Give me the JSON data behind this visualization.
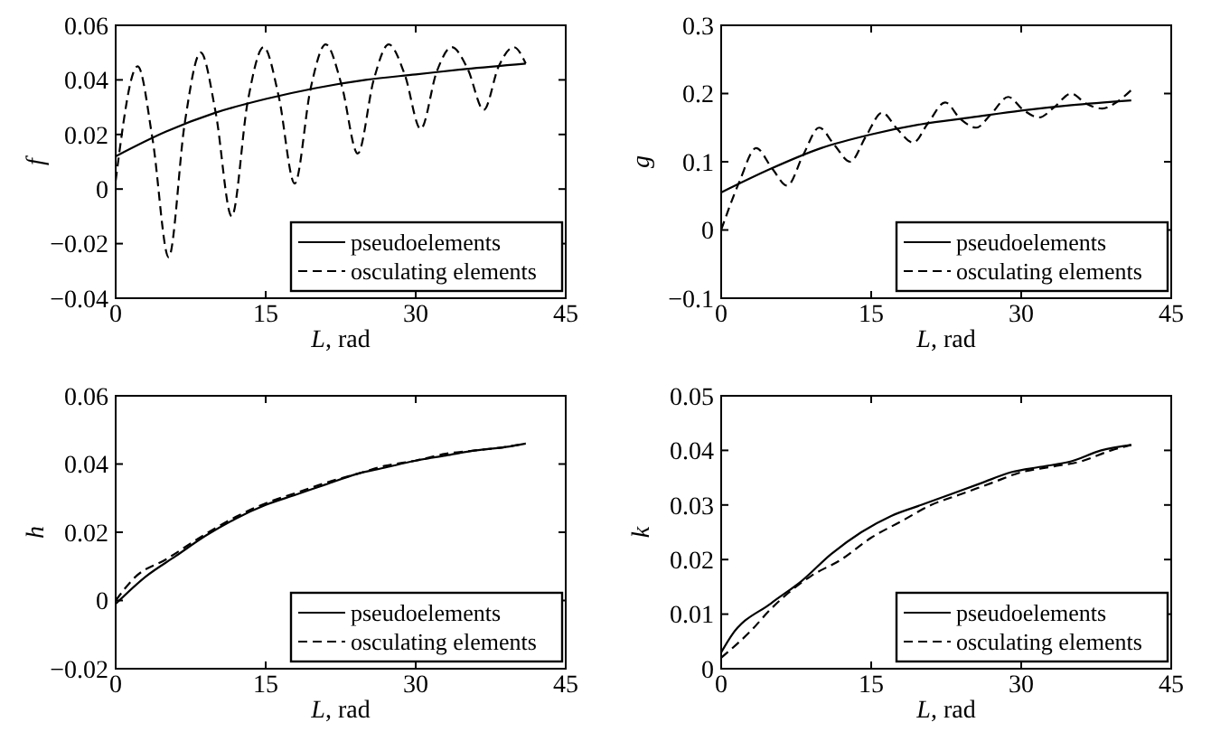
{
  "chart_data": [
    {
      "type": "line",
      "xlabel": "L, rad",
      "ylabel": "f",
      "xlim": [
        0,
        45
      ],
      "xticks": [
        0,
        15,
        30,
        45
      ],
      "ylim": [
        -0.04,
        0.06
      ],
      "yticks": [
        {
          "value": -0.04,
          "label": "−0.04"
        },
        {
          "value": -0.02,
          "label": "−0.02"
        },
        0,
        0.02,
        0.04,
        0.06
      ],
      "legend": "bottom right",
      "series": [
        {
          "name": "pseudoelements",
          "color": "#000000",
          "line_style": "solid",
          "x": [
            0,
            5,
            10,
            15,
            20,
            25,
            30,
            35,
            41
          ],
          "values": [
            0.012,
            0.021,
            0.028,
            0.033,
            0.037,
            0.04,
            0.042,
            0.044,
            0.046
          ]
        },
        {
          "name": "osculating elements",
          "color": "#000000",
          "line_style": "dashed",
          "x": [
            0,
            2.2,
            3.7,
            5.3,
            6.9,
            8.5,
            10,
            11.6,
            13.2,
            14.8,
            16.3,
            17.9,
            19.5,
            21,
            22.6,
            24.2,
            25.8,
            27.3,
            28.9,
            30.5,
            32.1,
            33.6,
            35.2,
            36.8,
            38.3,
            39.8,
            41
          ],
          "values": [
            0.003,
            0.045,
            0.018,
            -0.025,
            0.024,
            0.05,
            0.028,
            -0.01,
            0.032,
            0.052,
            0.034,
            0.002,
            0.037,
            0.053,
            0.038,
            0.013,
            0.04,
            0.053,
            0.042,
            0.022,
            0.043,
            0.052,
            0.044,
            0.029,
            0.045,
            0.052,
            0.046
          ]
        }
      ]
    },
    {
      "type": "line",
      "xlabel": "L, rad",
      "ylabel": "g",
      "xlim": [
        0,
        45
      ],
      "xticks": [
        0,
        15,
        30,
        45
      ],
      "ylim": [
        -0.1,
        0.3
      ],
      "yticks": [
        {
          "value": -0.1,
          "label": "−0.1"
        },
        0,
        0.1,
        0.2,
        0.3
      ],
      "legend": "bottom right",
      "series": [
        {
          "name": "pseudoelements",
          "color": "#000000",
          "line_style": "solid",
          "x": [
            0,
            5,
            10,
            15,
            20,
            25,
            30,
            35,
            41
          ],
          "values": [
            0.055,
            0.09,
            0.12,
            0.14,
            0.155,
            0.165,
            0.175,
            0.183,
            0.19
          ]
        },
        {
          "name": "osculating elements",
          "color": "#000000",
          "line_style": "dashed",
          "x": [
            0,
            1.8,
            3.5,
            5.1,
            6.6,
            8.2,
            9.8,
            11.3,
            12.9,
            14.5,
            16.1,
            17.6,
            19.2,
            20.7,
            22.4,
            23.9,
            25.5,
            27,
            28.7,
            30.2,
            31.8,
            33.3,
            35,
            36.5,
            38.1,
            39.6,
            41
          ],
          "values": [
            0,
            0.07,
            0.12,
            0.09,
            0.065,
            0.11,
            0.15,
            0.125,
            0.1,
            0.138,
            0.172,
            0.148,
            0.128,
            0.157,
            0.187,
            0.163,
            0.15,
            0.17,
            0.195,
            0.176,
            0.165,
            0.18,
            0.2,
            0.185,
            0.178,
            0.188,
            0.205
          ]
        }
      ]
    },
    {
      "type": "line",
      "xlabel": "L, rad",
      "ylabel": "h",
      "xlim": [
        0,
        45
      ],
      "xticks": [
        0,
        15,
        30,
        45
      ],
      "ylim": [
        -0.02,
        0.06
      ],
      "yticks": [
        {
          "value": -0.02,
          "label": "−0.02"
        },
        0,
        0.02,
        0.04,
        0.06
      ],
      "legend": "bottom right",
      "series": [
        {
          "name": "pseudoelements",
          "color": "#000000",
          "line_style": "solid",
          "x": [
            0,
            3,
            6,
            9,
            12,
            15,
            18,
            21,
            24,
            27,
            30,
            33,
            36,
            39,
            41
          ],
          "values": [
            -0.001,
            0.007,
            0.013,
            0.019,
            0.024,
            0.028,
            0.031,
            0.034,
            0.037,
            0.039,
            0.041,
            0.0425,
            0.044,
            0.045,
            0.046
          ]
        },
        {
          "name": "osculating elements",
          "color": "#000000",
          "line_style": "dashed",
          "x": [
            0,
            2,
            5,
            9,
            12,
            15,
            18,
            21,
            24,
            27,
            30,
            33,
            36,
            39,
            41
          ],
          "values": [
            0,
            0.007,
            0.012,
            0.0195,
            0.0245,
            0.0285,
            0.0315,
            0.0345,
            0.037,
            0.0395,
            0.041,
            0.043,
            0.044,
            0.045,
            0.046
          ]
        }
      ]
    },
    {
      "type": "line",
      "xlabel": "L, rad",
      "ylabel": "k",
      "xlim": [
        0,
        45
      ],
      "xticks": [
        0,
        15,
        30,
        45
      ],
      "ylim": [
        0,
        0.05
      ],
      "yticks": [
        0,
        0.01,
        0.02,
        0.03,
        0.04,
        0.05
      ],
      "legend": "bottom right",
      "series": [
        {
          "name": "pseudoelements",
          "color": "#000000",
          "line_style": "solid",
          "x": [
            0,
            1,
            5,
            8,
            11,
            14,
            17,
            20,
            23,
            26,
            29,
            32,
            35,
            38,
            41
          ],
          "values": [
            0.003,
            0.006,
            0.012,
            0.016,
            0.021,
            0.025,
            0.028,
            0.03,
            0.032,
            0.034,
            0.036,
            0.037,
            0.038,
            0.04,
            0.041
          ]
        },
        {
          "name": "osculating elements",
          "color": "#000000",
          "line_style": "dashed",
          "x": [
            0,
            3,
            5,
            9,
            12,
            15,
            18,
            21,
            24,
            27,
            30,
            33,
            36,
            39,
            41
          ],
          "values": [
            0.002,
            0.007,
            0.011,
            0.017,
            0.02,
            0.024,
            0.027,
            0.03,
            0.032,
            0.034,
            0.036,
            0.037,
            0.038,
            0.04,
            0.041
          ]
        }
      ]
    }
  ]
}
